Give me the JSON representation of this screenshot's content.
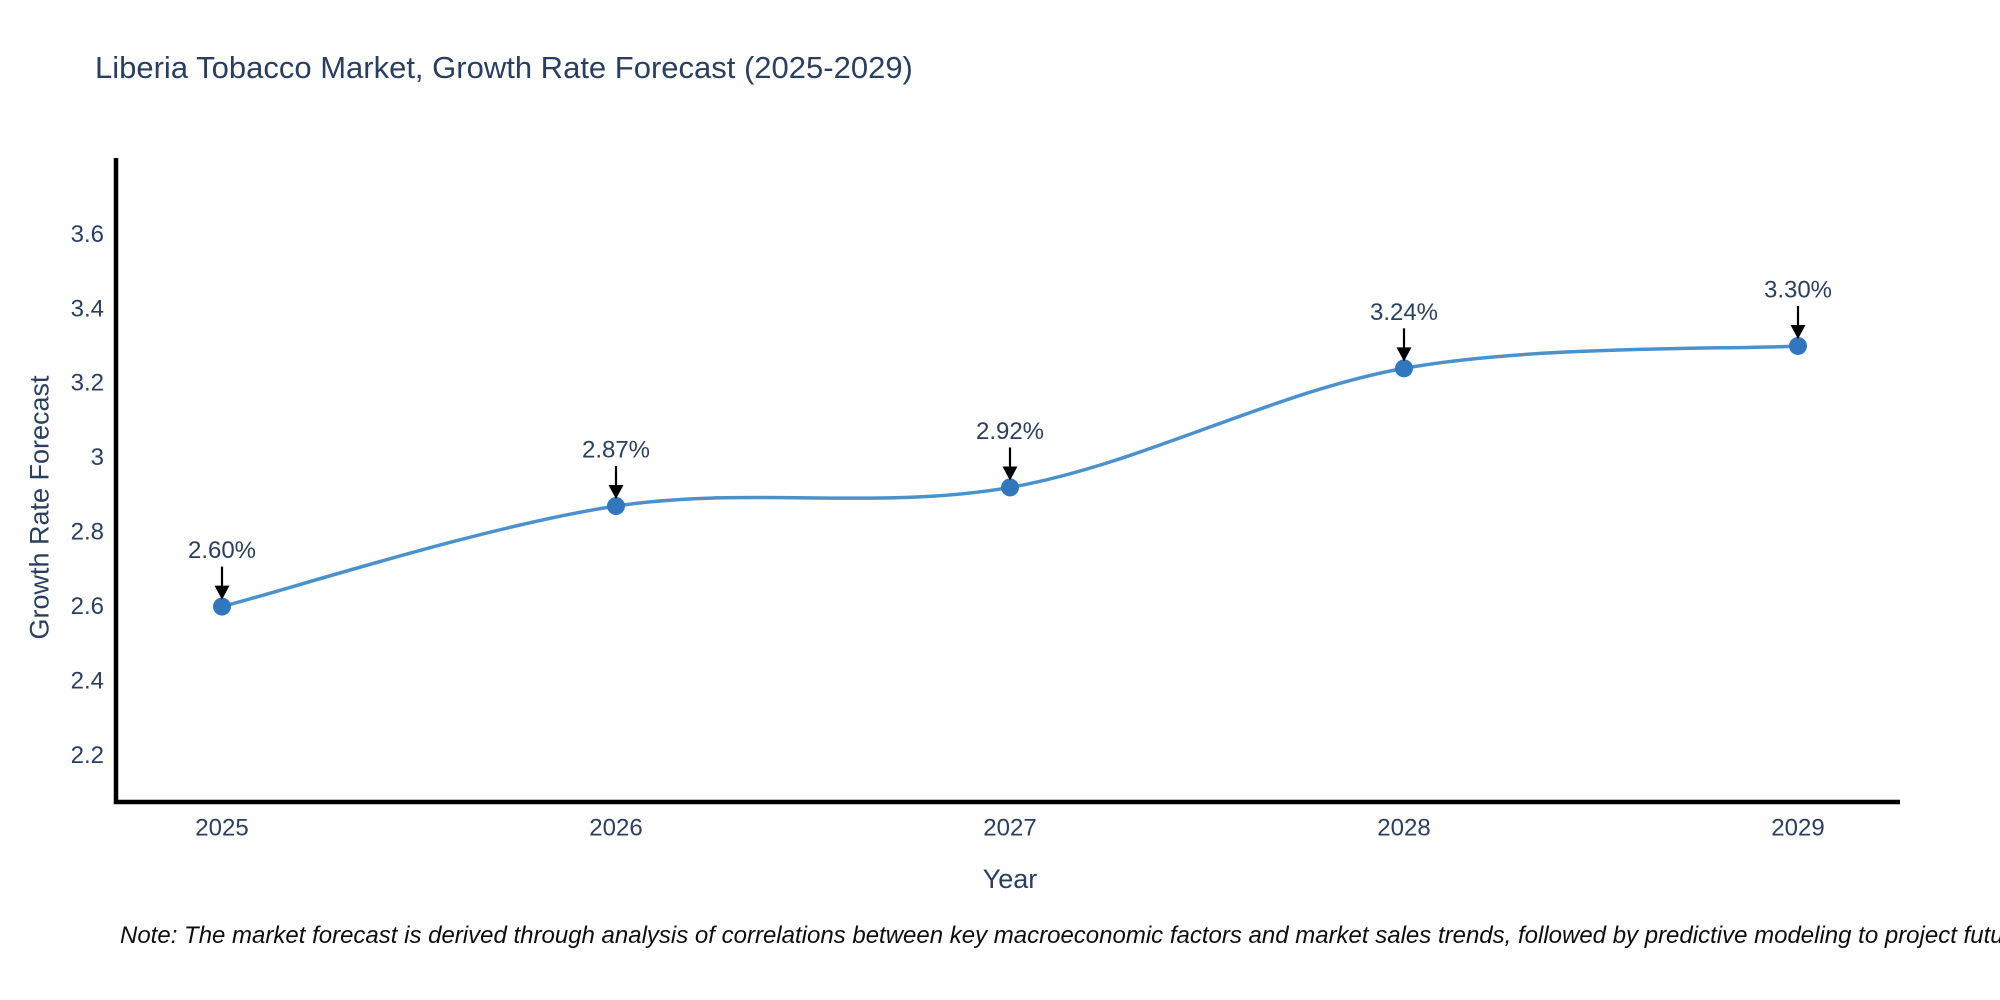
{
  "title": "Liberia Tobacco Market, Growth Rate Forecast (2025-2029)",
  "note": "Note: The market forecast is derived through analysis of correlations between key macroeconomic factors and market sales trends, followed by predictive modeling to project future sales",
  "chart_data": {
    "type": "line",
    "title": "Liberia Tobacco Market, Growth Rate Forecast (2025-2029)",
    "xlabel": "Year",
    "ylabel": "Growth Rate Forecast",
    "categories": [
      "2025",
      "2026",
      "2027",
      "2028",
      "2029"
    ],
    "values": [
      2.6,
      2.87,
      2.92,
      3.24,
      3.3
    ],
    "point_labels": [
      "2.60%",
      "2.87%",
      "2.92%",
      "3.24%",
      "3.30%"
    ],
    "y_ticks": [
      2.2,
      2.4,
      2.6,
      2.8,
      3,
      3.2,
      3.4,
      3.6
    ],
    "y_tick_labels": [
      "2.2",
      "2.4",
      "2.6",
      "2.8",
      "3",
      "3.2",
      "3.4",
      "3.6"
    ],
    "ylim": [
      2.075,
      3.805
    ],
    "line_shape": "spline",
    "grid": false,
    "legend_position": "none",
    "annotations_have_arrows": true,
    "colors": {
      "line": "#4b92cd",
      "marker": "#3077bd",
      "axis": "#000000",
      "text": "#2a3f5f",
      "note_text": "#0d0d0d",
      "arrow": "#000000",
      "background": "#ffffff"
    }
  }
}
